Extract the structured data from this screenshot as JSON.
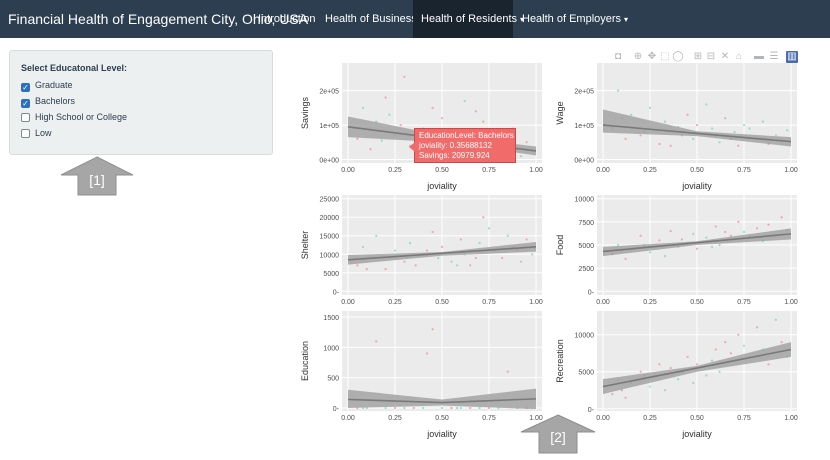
{
  "navbar": {
    "brand": "Financial Health of Engagement City, Ohio, USA",
    "items": [
      {
        "label": "Introduction",
        "active": false,
        "dropdown": false
      },
      {
        "label": "Health of Business",
        "active": false,
        "dropdown": true
      },
      {
        "label": "Health of Residents",
        "active": true,
        "dropdown": true
      },
      {
        "label": "Health of Employers",
        "active": false,
        "dropdown": true
      }
    ],
    "caret": "▾"
  },
  "sidebar": {
    "title": "Select Educatonal Level:",
    "options": [
      {
        "label": "Graduate",
        "checked": true
      },
      {
        "label": "Bachelors",
        "checked": true
      },
      {
        "label": "High School or College",
        "checked": false
      },
      {
        "label": "Low",
        "checked": false
      }
    ]
  },
  "callouts": {
    "one": "[1]",
    "two": "[2]"
  },
  "modebar": [
    "camera-icon",
    "zoom-icon",
    "pan-icon",
    "box-select-icon",
    "lasso-select-icon",
    "zoom-in-icon",
    "zoom-out-icon",
    "autoscale-icon",
    "reset-axes-icon",
    "spike-lines-icon",
    "compare-hover-icon",
    "plotly-logo-icon"
  ],
  "colors": {
    "navbar": "#2c3e50",
    "active": "#1a242f",
    "panel": "#ebebeb",
    "ribbon": "#9a9a9a",
    "trend": "#7a7a7a",
    "tooltip": "#f26b6b",
    "callout": "#a6a6a6",
    "point_a": "#f08a8a",
    "point_b": "#6fd4c0"
  },
  "tooltip": {
    "line1": "EducationLevel: Bachelors",
    "line2": "joviality: 0.35688132",
    "line3": "Savings: 20979.924"
  },
  "chart_data": [
    {
      "type": "scatter",
      "ylabel": "Savings",
      "xlabel": "joviality",
      "xlim": [
        0,
        1
      ],
      "ylim": [
        -10000,
        280000
      ],
      "xticks": [
        "0.00",
        "0.25",
        "0.50",
        "0.75",
        "1.00"
      ],
      "yticks": [
        {
          "v": 0,
          "label": "0e+00"
        },
        {
          "v": 100000,
          "label": "1e+05"
        },
        {
          "v": 200000,
          "label": "2e+05"
        }
      ],
      "trend": [
        [
          0.0,
          95000
        ],
        [
          1.0,
          25000
        ]
      ],
      "band": [
        [
          0.0,
          125000,
          65000
        ],
        [
          0.5,
          70000,
          50000
        ],
        [
          1.0,
          38000,
          12000
        ]
      ],
      "points": [
        [
          0.05,
          60000
        ],
        [
          0.08,
          150000
        ],
        [
          0.12,
          30000
        ],
        [
          0.15,
          110000
        ],
        [
          0.2,
          180000
        ],
        [
          0.25,
          70000
        ],
        [
          0.3,
          240000
        ],
        [
          0.33,
          40000
        ],
        [
          0.36,
          20980
        ],
        [
          0.4,
          90000
        ],
        [
          0.45,
          150000
        ],
        [
          0.48,
          50000
        ],
        [
          0.5,
          120000
        ],
        [
          0.55,
          20000
        ],
        [
          0.6,
          80000
        ],
        [
          0.62,
          170000
        ],
        [
          0.65,
          30000
        ],
        [
          0.7,
          60000
        ],
        [
          0.72,
          110000
        ],
        [
          0.78,
          20000
        ],
        [
          0.82,
          70000
        ],
        [
          0.85,
          40000
        ],
        [
          0.88,
          90000
        ],
        [
          0.92,
          10000
        ],
        [
          0.95,
          50000
        ],
        [
          0.98,
          25000
        ],
        [
          0.1,
          90000
        ],
        [
          0.22,
          130000
        ],
        [
          0.42,
          20000
        ],
        [
          0.58,
          60000
        ],
        [
          0.68,
          140000
        ],
        [
          0.75,
          45000
        ],
        [
          0.9,
          30000
        ],
        [
          0.18,
          55000
        ],
        [
          0.28,
          100000
        ],
        [
          0.52,
          35000
        ]
      ]
    },
    {
      "type": "scatter",
      "ylabel": "Wage",
      "xlabel": "joviality",
      "xlim": [
        0,
        1
      ],
      "ylim": [
        -10000,
        280000
      ],
      "xticks": [
        "0.00",
        "0.25",
        "0.50",
        "0.75",
        "1.00"
      ],
      "yticks": [
        {
          "v": 0,
          "label": "0e+00"
        },
        {
          "v": 100000,
          "label": "1e+05"
        },
        {
          "v": 200000,
          "label": "2e+05"
        }
      ],
      "trend": [
        [
          0.0,
          100000
        ],
        [
          1.0,
          52000
        ]
      ],
      "band": [
        [
          0.0,
          145000,
          78000
        ],
        [
          0.5,
          82000,
          68000
        ],
        [
          1.0,
          65000,
          38000
        ]
      ],
      "points": [
        [
          0.05,
          90000
        ],
        [
          0.08,
          200000
        ],
        [
          0.12,
          60000
        ],
        [
          0.15,
          130000
        ],
        [
          0.2,
          70000
        ],
        [
          0.25,
          150000
        ],
        [
          0.3,
          45000
        ],
        [
          0.33,
          110000
        ],
        [
          0.36,
          40000
        ],
        [
          0.4,
          95000
        ],
        [
          0.45,
          130000
        ],
        [
          0.48,
          60000
        ],
        [
          0.5,
          100000
        ],
        [
          0.55,
          160000
        ],
        [
          0.6,
          70000
        ],
        [
          0.62,
          50000
        ],
        [
          0.65,
          120000
        ],
        [
          0.7,
          80000
        ],
        [
          0.72,
          40000
        ],
        [
          0.78,
          90000
        ],
        [
          0.82,
          60000
        ],
        [
          0.85,
          110000
        ],
        [
          0.88,
          45000
        ],
        [
          0.92,
          70000
        ],
        [
          0.95,
          55000
        ],
        [
          0.98,
          85000
        ],
        [
          0.1,
          120000
        ],
        [
          0.22,
          80000
        ],
        [
          0.42,
          70000
        ],
        [
          0.58,
          90000
        ],
        [
          0.68,
          60000
        ],
        [
          0.75,
          100000
        ]
      ]
    },
    {
      "type": "scatter",
      "ylabel": "Shelter",
      "xlabel": "joviality",
      "xlim": [
        0,
        1
      ],
      "ylim": [
        -1000,
        26000
      ],
      "xticks": [
        "0.00",
        "0.25",
        "0.50",
        "0.75",
        "1.00"
      ],
      "yticks": [
        {
          "v": 0,
          "label": "0-"
        },
        {
          "v": 5000,
          "label": "5000"
        },
        {
          "v": 10000,
          "label": "10000"
        },
        {
          "v": 15000,
          "label": "15000"
        },
        {
          "v": 20000,
          "label": "20000"
        },
        {
          "v": 25000,
          "label": "25000"
        }
      ],
      "trend": [
        [
          0.0,
          8500
        ],
        [
          1.0,
          12000
        ]
      ],
      "band": [
        [
          0.0,
          9800,
          7200
        ],
        [
          0.5,
          10600,
          9600
        ],
        [
          1.0,
          13300,
          10700
        ]
      ],
      "points": [
        [
          0.05,
          7000
        ],
        [
          0.08,
          12000
        ],
        [
          0.12,
          9000
        ],
        [
          0.15,
          15000
        ],
        [
          0.2,
          6000
        ],
        [
          0.25,
          11000
        ],
        [
          0.3,
          8000
        ],
        [
          0.33,
          13000
        ],
        [
          0.36,
          7000
        ],
        [
          0.4,
          10000
        ],
        [
          0.45,
          16000
        ],
        [
          0.48,
          9000
        ],
        [
          0.5,
          12000
        ],
        [
          0.55,
          8000
        ],
        [
          0.6,
          14000
        ],
        [
          0.62,
          10000
        ],
        [
          0.65,
          7000
        ],
        [
          0.7,
          13000
        ],
        [
          0.72,
          20000
        ],
        [
          0.78,
          11000
        ],
        [
          0.82,
          9000
        ],
        [
          0.85,
          15000
        ],
        [
          0.88,
          12000
        ],
        [
          0.92,
          8000
        ],
        [
          0.95,
          14000
        ],
        [
          0.98,
          10000
        ],
        [
          0.1,
          6000
        ],
        [
          0.22,
          9000
        ],
        [
          0.42,
          11000
        ],
        [
          0.58,
          7000
        ],
        [
          0.68,
          9000
        ],
        [
          0.75,
          17000
        ],
        [
          0.9,
          11000
        ]
      ]
    },
    {
      "type": "scatter",
      "ylabel": "Food",
      "xlabel": "joviality",
      "xlim": [
        0,
        1
      ],
      "ylim": [
        -400,
        10400
      ],
      "xticks": [
        "0.00",
        "0.25",
        "0.50",
        "0.75",
        "1.00"
      ],
      "yticks": [
        {
          "v": 0,
          "label": "0-"
        },
        {
          "v": 2500,
          "label": "2500"
        },
        {
          "v": 5000,
          "label": "5000"
        },
        {
          "v": 7500,
          "label": "7500"
        },
        {
          "v": 10000,
          "label": "10000"
        }
      ],
      "trend": [
        [
          0.0,
          4300
        ],
        [
          1.0,
          6200
        ]
      ],
      "band": [
        [
          0.0,
          4800,
          3800
        ],
        [
          0.5,
          5400,
          5000
        ],
        [
          1.0,
          6800,
          5600
        ]
      ],
      "points": [
        [
          0.05,
          4000
        ],
        [
          0.08,
          5000
        ],
        [
          0.12,
          3500
        ],
        [
          0.15,
          4500
        ],
        [
          0.2,
          6000
        ],
        [
          0.25,
          4200
        ],
        [
          0.3,
          5500
        ],
        [
          0.33,
          3800
        ],
        [
          0.36,
          6500
        ],
        [
          0.4,
          4800
        ],
        [
          0.45,
          5200
        ],
        [
          0.48,
          6200
        ],
        [
          0.5,
          4600
        ],
        [
          0.55,
          5800
        ],
        [
          0.6,
          7000
        ],
        [
          0.62,
          5000
        ],
        [
          0.65,
          6400
        ],
        [
          0.7,
          5600
        ],
        [
          0.72,
          7500
        ],
        [
          0.78,
          6000
        ],
        [
          0.82,
          6800
        ],
        [
          0.85,
          5400
        ],
        [
          0.88,
          7200
        ],
        [
          0.92,
          6000
        ],
        [
          0.95,
          8000
        ],
        [
          0.98,
          6600
        ],
        [
          0.1,
          4400
        ],
        [
          0.22,
          5000
        ],
        [
          0.42,
          5600
        ],
        [
          0.58,
          4800
        ],
        [
          0.68,
          6000
        ],
        [
          0.75,
          6400
        ]
      ]
    },
    {
      "type": "scatter",
      "ylabel": "Education",
      "xlabel": "joviality",
      "xlim": [
        0,
        1
      ],
      "ylim": [
        -50,
        1600
      ],
      "xticks": [
        "0.00",
        "0.25",
        "0.50",
        "0.75",
        "1.00"
      ],
      "yticks": [
        {
          "v": 0,
          "label": "0-"
        },
        {
          "v": 500,
          "label": "500"
        },
        {
          "v": 1000,
          "label": "1000"
        },
        {
          "v": 1500,
          "label": "1500"
        }
      ],
      "trend": [
        [
          0.0,
          140
        ],
        [
          0.5,
          90
        ],
        [
          1.0,
          150
        ]
      ],
      "band": [
        [
          0.0,
          300,
          0
        ],
        [
          0.5,
          140,
          40
        ],
        [
          1.0,
          320,
          -20
        ]
      ],
      "points": [
        [
          0.05,
          0
        ],
        [
          0.1,
          0
        ],
        [
          0.15,
          1100
        ],
        [
          0.2,
          0
        ],
        [
          0.25,
          0
        ],
        [
          0.3,
          0
        ],
        [
          0.35,
          0
        ],
        [
          0.4,
          0
        ],
        [
          0.45,
          1300
        ],
        [
          0.5,
          0
        ],
        [
          0.55,
          0
        ],
        [
          0.6,
          0
        ],
        [
          0.65,
          0
        ],
        [
          0.7,
          0
        ],
        [
          0.75,
          0
        ],
        [
          0.8,
          0
        ],
        [
          0.85,
          600
        ],
        [
          0.9,
          0
        ],
        [
          0.95,
          0
        ],
        [
          0.08,
          0
        ],
        [
          0.42,
          900
        ],
        [
          0.58,
          0
        ]
      ]
    },
    {
      "type": "scatter",
      "ylabel": "Recreation",
      "xlabel": "joviality",
      "xlim": [
        0,
        1
      ],
      "ylim": [
        -300,
        13200
      ],
      "xticks": [
        "0.00",
        "0.25",
        "0.50",
        "0.75",
        "1.00"
      ],
      "yticks": [
        {
          "v": 0,
          "label": "0-"
        },
        {
          "v": 5000,
          "label": "5000"
        },
        {
          "v": 10000,
          "label": "10000"
        }
      ],
      "trend": [
        [
          0.0,
          3000
        ],
        [
          1.0,
          8000
        ]
      ],
      "band": [
        [
          0.0,
          4000,
          2000
        ],
        [
          0.5,
          5800,
          5000
        ],
        [
          1.0,
          9000,
          7000
        ]
      ],
      "points": [
        [
          0.05,
          2000
        ],
        [
          0.08,
          4000
        ],
        [
          0.12,
          1500
        ],
        [
          0.15,
          3500
        ],
        [
          0.2,
          5000
        ],
        [
          0.25,
          3000
        ],
        [
          0.3,
          6000
        ],
        [
          0.33,
          2500
        ],
        [
          0.36,
          5500
        ],
        [
          0.4,
          4000
        ],
        [
          0.45,
          7000
        ],
        [
          0.48,
          3500
        ],
        [
          0.5,
          6000
        ],
        [
          0.55,
          4500
        ],
        [
          0.6,
          8000
        ],
        [
          0.62,
          5000
        ],
        [
          0.65,
          9000
        ],
        [
          0.7,
          6500
        ],
        [
          0.72,
          10000
        ],
        [
          0.78,
          7000
        ],
        [
          0.82,
          11000
        ],
        [
          0.85,
          8000
        ],
        [
          0.88,
          6000
        ],
        [
          0.92,
          12000
        ],
        [
          0.95,
          9000
        ],
        [
          0.98,
          7000
        ],
        [
          0.1,
          2500
        ],
        [
          0.22,
          4500
        ],
        [
          0.42,
          5000
        ],
        [
          0.58,
          6500
        ],
        [
          0.68,
          7500
        ],
        [
          0.75,
          8500
        ]
      ]
    }
  ]
}
